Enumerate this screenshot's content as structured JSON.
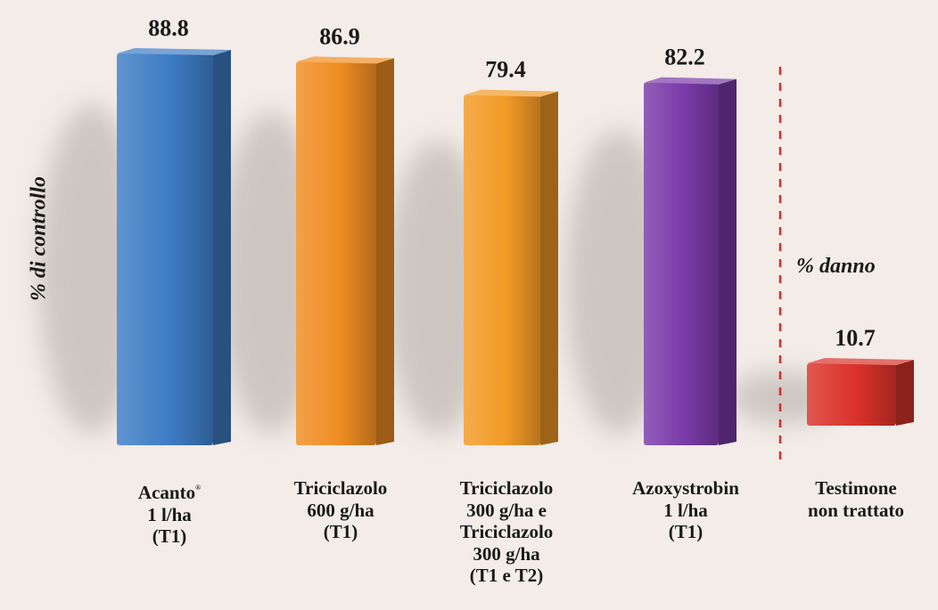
{
  "chart_data": {
    "type": "bar",
    "ylabel": "% di controllo",
    "secondary_label": "% danno",
    "categories": [
      {
        "lines": [
          "Acanto",
          "1 l/ha",
          "(T1)"
        ],
        "trademark": "®"
      },
      {
        "lines": [
          "Triciclazolo",
          "600 g/ha",
          "(T1)"
        ]
      },
      {
        "lines": [
          "Triciclazolo",
          "300 g/ha e",
          "Triciclazolo",
          "300 g/ha",
          "(T1 e T2)"
        ]
      },
      {
        "lines": [
          "Azoxystrobin",
          "1 l/ha",
          "(T1)"
        ]
      },
      {
        "lines": [
          "Testimone",
          "non trattato"
        ]
      }
    ],
    "values": [
      88.8,
      86.9,
      79.4,
      82.2,
      10.7
    ],
    "value_labels": [
      "88.8",
      "86.9",
      "79.4",
      "82.2",
      "10.7"
    ],
    "colors": [
      "#3d7cc4",
      "#f08c22",
      "#f29a26",
      "#7a3aa8",
      "#d9322a"
    ],
    "divider": {
      "after_category": 4,
      "style": "dashed",
      "color": "#d62b2b"
    },
    "grid": false,
    "legend": "none"
  }
}
